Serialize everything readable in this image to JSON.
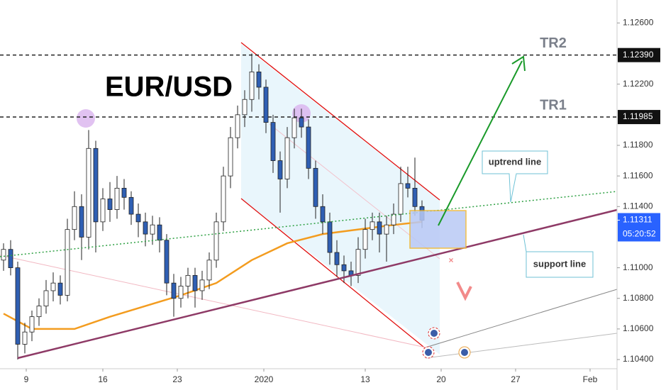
{
  "chart_data": {
    "type": "candlestick",
    "title": "EUR/USD",
    "up_color": "#ffffff",
    "down_color": "#2f5fb3",
    "outline_color": "#222222",
    "candles": [
      [
        1.1105,
        1.1116,
        1.1098,
        1.1112
      ],
      [
        1.1112,
        1.1118,
        1.1095,
        1.11
      ],
      [
        1.11,
        1.1104,
        1.104,
        1.105
      ],
      [
        1.105,
        1.1064,
        1.1044,
        1.1058
      ],
      [
        1.1058,
        1.1072,
        1.1052,
        1.1068
      ],
      [
        1.1068,
        1.108,
        1.1062,
        1.1075
      ],
      [
        1.1075,
        1.1092,
        1.107,
        1.1085
      ],
      [
        1.1085,
        1.1097,
        1.1078,
        1.109
      ],
      [
        1.109,
        1.1095,
        1.1076,
        1.1082
      ],
      [
        1.1082,
        1.1132,
        1.1078,
        1.1125
      ],
      [
        1.1125,
        1.115,
        1.1118,
        1.114
      ],
      [
        1.114,
        1.1148,
        1.1105,
        1.112
      ],
      [
        1.112,
        1.119,
        1.1112,
        1.1178
      ],
      [
        1.1178,
        1.1183,
        1.111,
        1.113
      ],
      [
        1.113,
        1.1152,
        1.1124,
        1.1145
      ],
      [
        1.1145,
        1.1156,
        1.113,
        1.1138
      ],
      [
        1.1138,
        1.116,
        1.1132,
        1.1152
      ],
      [
        1.1152,
        1.1158,
        1.1138,
        1.1146
      ],
      [
        1.1146,
        1.115,
        1.1128,
        1.1135
      ],
      [
        1.1135,
        1.1142,
        1.112,
        1.113
      ],
      [
        1.113,
        1.1136,
        1.1114,
        1.1122
      ],
      [
        1.1122,
        1.1134,
        1.1115,
        1.1128
      ],
      [
        1.1128,
        1.1133,
        1.111,
        1.1118
      ],
      [
        1.1118,
        1.1122,
        1.1082,
        1.109
      ],
      [
        1.109,
        1.1096,
        1.1068,
        1.108
      ],
      [
        1.108,
        1.1094,
        1.1074,
        1.1088
      ],
      [
        1.1088,
        1.11,
        1.108,
        1.1095
      ],
      [
        1.1095,
        1.11,
        1.1074,
        1.1085
      ],
      [
        1.1085,
        1.1098,
        1.1079,
        1.1092
      ],
      [
        1.1092,
        1.111,
        1.1086,
        1.1105
      ],
      [
        1.1105,
        1.1136,
        1.11,
        1.113
      ],
      [
        1.113,
        1.1166,
        1.1124,
        1.116
      ],
      [
        1.116,
        1.1192,
        1.1152,
        1.1185
      ],
      [
        1.1185,
        1.1206,
        1.1178,
        1.12
      ],
      [
        1.12,
        1.1216,
        1.1192,
        1.121
      ],
      [
        1.121,
        1.124,
        1.1202,
        1.1228
      ],
      [
        1.1228,
        1.1233,
        1.121,
        1.1218
      ],
      [
        1.1218,
        1.1223,
        1.1188,
        1.1195
      ],
      [
        1.1195,
        1.12,
        1.1162,
        1.117
      ],
      [
        1.117,
        1.1176,
        1.1136,
        1.1158
      ],
      [
        1.1158,
        1.1192,
        1.1152,
        1.1185
      ],
      [
        1.1185,
        1.1204,
        1.1178,
        1.1198
      ],
      [
        1.1198,
        1.1204,
        1.1185,
        1.1192
      ],
      [
        1.1192,
        1.1197,
        1.1158,
        1.1165
      ],
      [
        1.1165,
        1.117,
        1.1132,
        1.114
      ],
      [
        1.114,
        1.1148,
        1.1122,
        1.113
      ],
      [
        1.113,
        1.1136,
        1.1102,
        1.111
      ],
      [
        1.111,
        1.1118,
        1.1094,
        1.1102
      ],
      [
        1.1102,
        1.1108,
        1.109,
        1.1098
      ],
      [
        1.1098,
        1.1104,
        1.1088,
        1.1095
      ],
      [
        1.1095,
        1.112,
        1.109,
        1.1112
      ],
      [
        1.1112,
        1.1132,
        1.1106,
        1.1125
      ],
      [
        1.1125,
        1.1136,
        1.1118,
        1.113
      ],
      [
        1.113,
        1.1136,
        1.111,
        1.1122
      ],
      [
        1.1122,
        1.1134,
        1.1104,
        1.1128
      ],
      [
        1.1128,
        1.1142,
        1.1122,
        1.1135
      ],
      [
        1.1135,
        1.1166,
        1.113,
        1.1155
      ],
      [
        1.1155,
        1.1166,
        1.1146,
        1.1152
      ],
      [
        1.1152,
        1.1172,
        1.1134,
        1.114
      ],
      [
        1.114,
        1.1144,
        1.1126,
        1.1131
      ]
    ],
    "moving_average": {
      "color": "#f39c1f",
      "x": [
        0,
        4,
        10,
        15,
        20,
        25,
        30,
        35,
        40,
        45,
        50,
        55,
        59
      ],
      "values": [
        1.107,
        1.106,
        1.106,
        1.1068,
        1.1075,
        1.1082,
        1.109,
        1.1105,
        1.1116,
        1.1122,
        1.1125,
        1.1128,
        1.113
      ]
    },
    "price_lines": [
      {
        "value": 1.1239,
        "label": "1.12390",
        "name": "TR2"
      },
      {
        "value": 1.11985,
        "label": "1.11985",
        "name": "TR1"
      }
    ],
    "current_price": {
      "value": 1.11311,
      "label": "1.11311",
      "countdown": "05:20:52",
      "color": "#2962ff"
    },
    "annotations": [
      "uptrend line",
      "support line"
    ],
    "xlim": [
      -0.5,
      86.5
    ],
    "ylim": [
      1.1034,
      1.1275
    ],
    "xticks": [
      {
        "value": 3.2,
        "label": "9"
      },
      {
        "value": 14,
        "label": "16"
      },
      {
        "value": 24.5,
        "label": "23"
      },
      {
        "value": 36.7,
        "label": "2020"
      },
      {
        "value": 51,
        "label": "13"
      },
      {
        "value": 61.7,
        "label": "20"
      },
      {
        "value": 72.2,
        "label": "27"
      },
      {
        "value": 82.7,
        "label": "Feb"
      }
    ],
    "yticks": [
      {
        "value": 1.126,
        "label": "1.12600"
      },
      {
        "value": 1.122,
        "label": "1.12200"
      },
      {
        "value": 1.118,
        "label": "1.11800"
      },
      {
        "value": 1.116,
        "label": "1.11600"
      },
      {
        "value": 1.114,
        "label": "1.11400"
      },
      {
        "value": 1.11,
        "label": "1.11000"
      },
      {
        "value": 1.108,
        "label": "1.10800"
      },
      {
        "value": 1.106,
        "label": "1.10600"
      },
      {
        "value": 1.104,
        "label": "1.10400"
      }
    ]
  }
}
